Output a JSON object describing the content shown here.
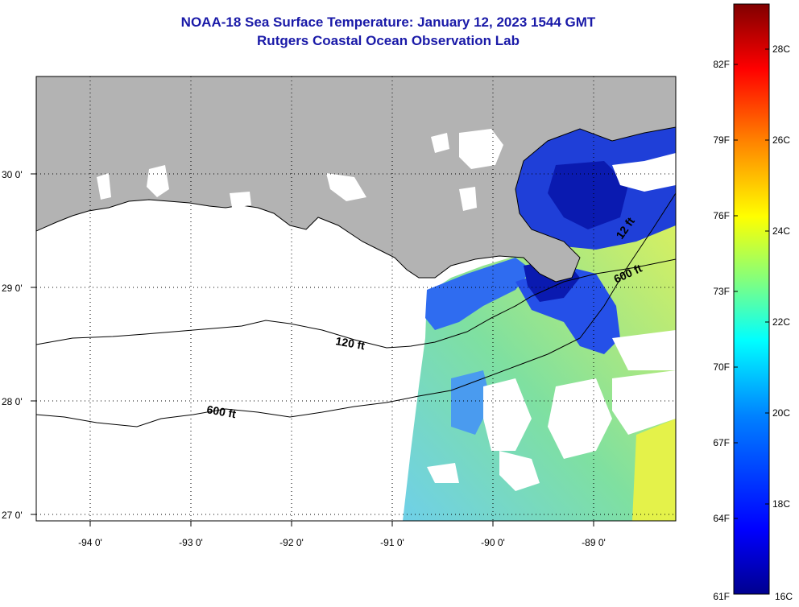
{
  "title": {
    "line1": "NOAA-18 Sea Surface Temperature:  January 12, 2023 1544 GMT",
    "line2": "Rutgers Coastal Ocean Observation Lab"
  },
  "map": {
    "lon_ticks": [
      "-94 0'",
      "-93 0'",
      "-92 0'",
      "-91 0'",
      "-90 0'",
      "-89 0'"
    ],
    "lat_ticks": [
      "30 0'",
      "29 0'",
      "28 0'",
      "27 0'"
    ],
    "contours": [
      "120 ft",
      "600 ft",
      "600 ft",
      "12 ft"
    ],
    "colors": {
      "land": "#b3b3b3",
      "cloud": "#ffffff",
      "coast": "#000000"
    }
  },
  "colorbar": {
    "fahrenheit": [
      "82F",
      "79F",
      "76F",
      "73F",
      "70F",
      "67F",
      "64F",
      "61F"
    ],
    "celsius": [
      "28C",
      "26C",
      "24C",
      "22C",
      "20C",
      "18C",
      "16C"
    ],
    "palette": [
      "#00008f",
      "#0000ff",
      "#0080ff",
      "#00ffff",
      "#80ff80",
      "#ffff00",
      "#ff8000",
      "#ff0000",
      "#800000"
    ]
  }
}
